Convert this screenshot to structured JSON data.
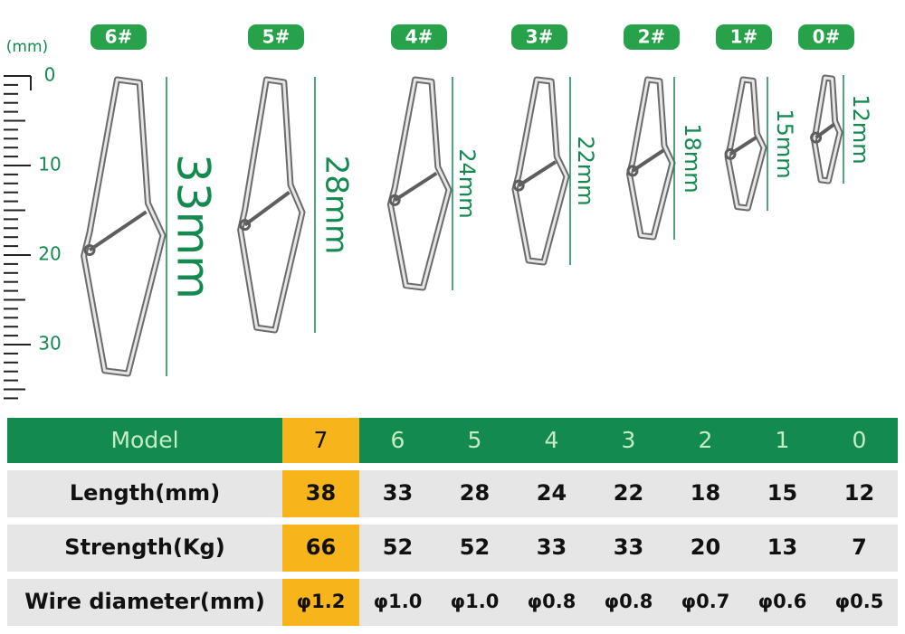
{
  "unit_label": "(mm)",
  "ruler_labels": [
    "0",
    "10",
    "20",
    "30"
  ],
  "sizes": [
    {
      "badge": "6#",
      "length": "33mm"
    },
    {
      "badge": "5#",
      "length": "28mm"
    },
    {
      "badge": "4#",
      "length": "24mm"
    },
    {
      "badge": "3#",
      "length": "22mm"
    },
    {
      "badge": "2#",
      "length": "18mm"
    },
    {
      "badge": "1#",
      "length": "15mm"
    },
    {
      "badge": "0#",
      "length": "12mm"
    }
  ],
  "table": {
    "header": [
      "Model",
      "7",
      "6",
      "5",
      "4",
      "3",
      "2",
      "1",
      "0"
    ],
    "rows": [
      [
        "Length(mm)",
        "38",
        "33",
        "28",
        "24",
        "22",
        "18",
        "15",
        "12"
      ],
      [
        "Strength(Kg)",
        "66",
        "52",
        "52",
        "33",
        "33",
        "20",
        "13",
        "7"
      ],
      [
        "Wire diameter(mm)",
        "φ1.2",
        "φ1.0",
        "φ1.0",
        "φ0.8",
        "φ0.8",
        "φ0.7",
        "φ0.6",
        "φ0.5"
      ]
    ]
  }
}
